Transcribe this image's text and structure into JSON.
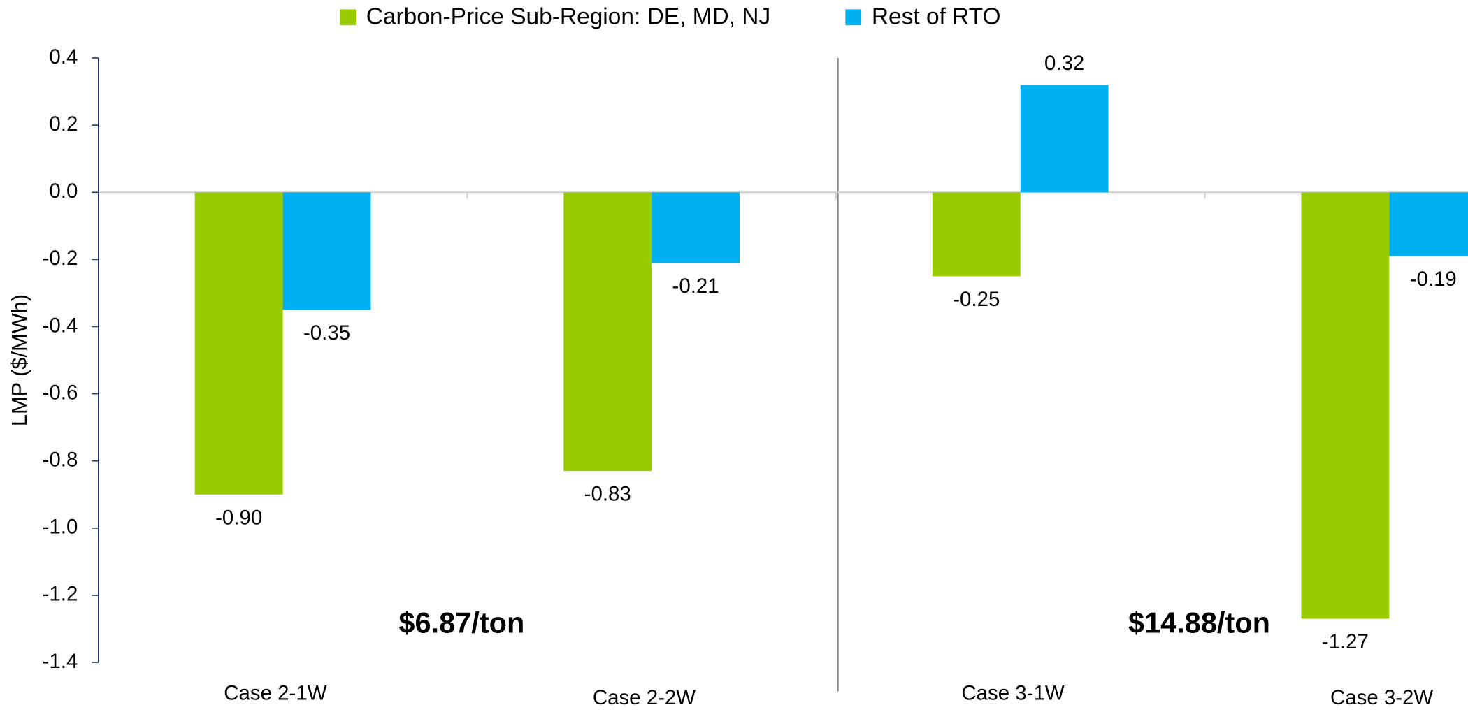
{
  "chart_data": {
    "type": "bar",
    "y_label": "LMP ($/MWh)",
    "categories": [
      "Case 2-1W",
      "Case 2-2W",
      "Case 3-1W",
      "Case 3-2W"
    ],
    "series": [
      {
        "name": "Carbon-Price Sub-Region: DE, MD, NJ",
        "color": "#99cc00",
        "values": [
          -0.9,
          -0.83,
          -0.25,
          -1.27
        ],
        "value_labels": [
          "-0.90",
          "-0.83",
          "-0.25",
          "-1.27"
        ]
      },
      {
        "name": "Rest of RTO",
        "color": "#00b0f0",
        "values": [
          -0.35,
          -0.21,
          0.32,
          -0.19
        ],
        "value_labels": [
          "-0.35",
          "-0.21",
          "0.32",
          "-0.19"
        ]
      }
    ],
    "ylim": [
      -1.4,
      0.4
    ],
    "yticks": [
      0.4,
      0.2,
      {
        "value": 0,
        "label": "0.0"
      },
      -0.2,
      -0.4,
      -0.6,
      -0.8,
      {
        "value": -1,
        "label": "-1.0"
      },
      -1.2,
      -1.4
    ],
    "annotations": [
      {
        "text": "$6.87/ton",
        "color": "#5f7f00"
      },
      {
        "text": "$14.88/ton",
        "color": "#8db600"
      }
    ],
    "legend": "top"
  }
}
